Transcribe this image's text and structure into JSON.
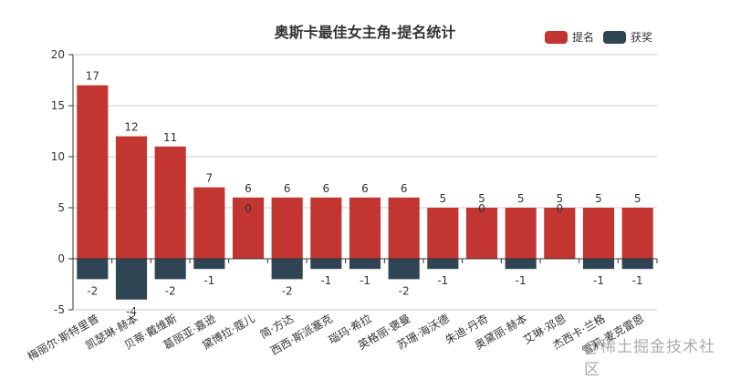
{
  "chart_data": {
    "type": "bar",
    "title": "奥斯卡最佳女主角-提名统计",
    "xlabel": "",
    "ylabel": "",
    "ylim": [
      -5,
      20
    ],
    "yticks": [
      -5,
      0,
      5,
      10,
      15,
      20
    ],
    "grid": true,
    "legend_position": "top-right",
    "categories": [
      "梅丽尔·斯特里普",
      "凯瑟琳·赫本",
      "贝蒂·戴维斯",
      "葛丽亚·嘉逊",
      "黛博拉·蔻儿",
      "简·方达",
      "西西·斯派塞克",
      "瑙玛·希拉",
      "英格丽·褒曼",
      "苏珊·海沃德",
      "朱迪·丹奇",
      "奥黛丽·赫本",
      "艾琳·邓恩",
      "杰西卡·兰格",
      "雪莉·麦克雷恩"
    ],
    "series": [
      {
        "name": "提名",
        "color": "#c23531",
        "values": [
          17,
          12,
          11,
          7,
          6,
          6,
          6,
          6,
          6,
          5,
          5,
          5,
          5,
          5,
          5
        ]
      },
      {
        "name": "获奖",
        "color": "#2f4554",
        "values": [
          -2,
          -4,
          -2,
          -1,
          0,
          -2,
          -1,
          -1,
          -2,
          -1,
          0,
          -1,
          0,
          -1,
          -1
        ]
      }
    ]
  },
  "title": "奥斯卡最佳女主角-提名统计",
  "legend": [
    {
      "label": "提名",
      "color": "#c23531"
    },
    {
      "label": "获奖",
      "color": "#2f4554"
    }
  ],
  "watermark": "@稀土掘金技术社区"
}
